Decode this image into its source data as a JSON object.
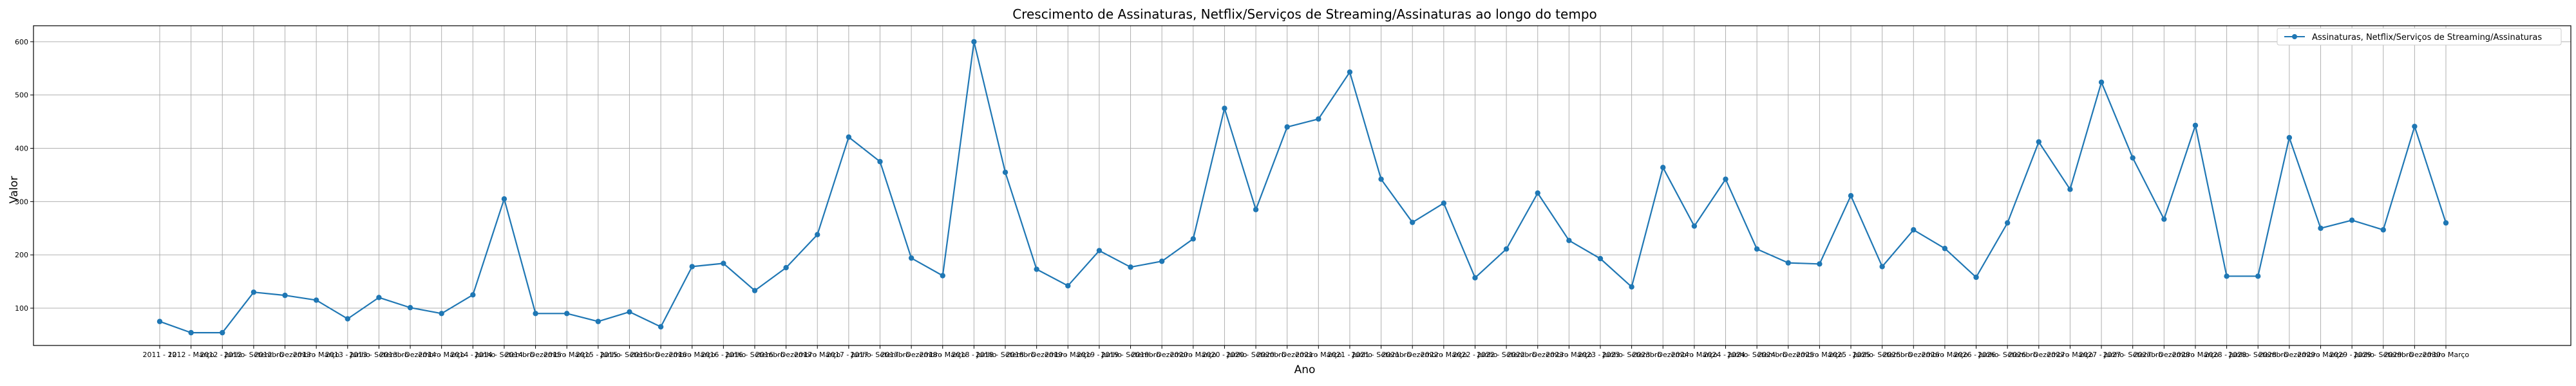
{
  "chart_data": {
    "type": "line",
    "title": "Crescimento de Assinaturas, Netflix/Serviços de Streaming/Assinaturas ao longo do tempo",
    "xlabel": "Ano",
    "ylabel": "Valor",
    "ylim": [
      30,
      630
    ],
    "yticks": [
      100,
      200,
      300,
      400,
      500,
      600
    ],
    "grid": true,
    "legend_position": "top-right",
    "series": [
      {
        "name": "Assinaturas, Netflix/Serviços de Streaming/Assinaturas",
        "color": "#1f77b4",
        "marker": "circle",
        "values": [
          75,
          54,
          54,
          130,
          124,
          115,
          80,
          120,
          101,
          90,
          125,
          305,
          90,
          90,
          75,
          93,
          65,
          178,
          184,
          133,
          176,
          238,
          421,
          375,
          194,
          161,
          600,
          355,
          173,
          142,
          208,
          177,
          188,
          230,
          475,
          285,
          440,
          455,
          543,
          342,
          261,
          297,
          157,
          211,
          316,
          227,
          193,
          140,
          364,
          254,
          342,
          211,
          185,
          183,
          311,
          178,
          247,
          212,
          158,
          260,
          412,
          323,
          524,
          382,
          267,
          443,
          160,
          160,
          420,
          250,
          265,
          247,
          441,
          260
        ]
      }
    ],
    "category_labels": [
      "2011 - 12",
      "2012 - Março",
      "2012 - Junho",
      "2012 - Setembro",
      "2012 - Dezembro",
      "2013 - Março",
      "2013 - Junho",
      "2013 - Setembro",
      "2013 - Dezembro",
      "2014 - Março",
      "2014 - Junho",
      "2014 - Setembro",
      "2014 - Dezembro",
      "2015 - Março",
      "2015 - Junho",
      "2015 - Setembro",
      "2015 - Dezembro",
      "2016 - Março",
      "2016 - Junho",
      "2016 - Setembro",
      "2016 - Dezembro",
      "2017 - Março",
      "2017 - Junho",
      "2017 - Setembro",
      "2017 - Dezembro",
      "2018 - Março",
      "2018 - Junho",
      "2018 - Setembro",
      "2018 - Dezembro",
      "2019 - Março",
      "2019 - Junho",
      "2019 - Setembro",
      "2019 - Dezembro",
      "2020 - Março",
      "2020 - Junho",
      "2020 - Setembro",
      "2020 - Dezembro",
      "2021 - Março",
      "2021 - Junho",
      "2021 - Setembro",
      "2021 - Dezembro",
      "2022 - Março",
      "2022 - Junho",
      "2022 - Setembro",
      "2022 - Dezembro",
      "2023 - Março",
      "2023 - Junho",
      "2023 - Setembro",
      "2023 - Dezembro",
      "2024 - Março",
      "2024 - Junho",
      "2024 - Setembro",
      "2024 - Dezembro",
      "2025 - Março",
      "2025 - Junho",
      "2025 - Setembro",
      "2025 - Dezembro",
      "2026 - Março",
      "2026 - Junho",
      "2026 - Setembro",
      "2026 - Dezembro",
      "2027 - Março",
      "2027 - Junho",
      "2027 - Setembro",
      "2027 - Dezembro",
      "2028 - Março",
      "2028 - Junho",
      "2028 - Setembro",
      "2028 - Dezembro",
      "2029 - Março",
      "2029 - Junho",
      "2029 - Setembro",
      "2029 - Dezembro",
      "2030 - Março"
    ]
  }
}
